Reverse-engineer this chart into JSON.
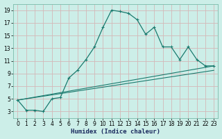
{
  "xlabel": "Humidex (Indice chaleur)",
  "background_color": "#cceee8",
  "grid_color": "#aad4ce",
  "line_color": "#1a7a6e",
  "xlim": [
    -0.5,
    23.5
  ],
  "ylim": [
    2,
    20
  ],
  "xticks": [
    0,
    1,
    2,
    3,
    4,
    5,
    6,
    7,
    8,
    9,
    10,
    11,
    12,
    13,
    14,
    15,
    16,
    17,
    18,
    19,
    20,
    21,
    22,
    23
  ],
  "yticks": [
    3,
    5,
    7,
    9,
    11,
    13,
    15,
    17,
    19
  ],
  "curve1_x": [
    0,
    1,
    2,
    3,
    4,
    5,
    6,
    7,
    8,
    9,
    10,
    11,
    12,
    13,
    14,
    15,
    16,
    17,
    18,
    19,
    20,
    21,
    22,
    23
  ],
  "curve1_y": [
    4.8,
    3.2,
    3.2,
    3.0,
    5.0,
    5.2,
    8.3,
    9.5,
    11.2,
    13.2,
    16.3,
    19.0,
    18.8,
    18.5,
    17.5,
    15.2,
    16.3,
    13.2,
    13.2,
    11.2,
    13.2,
    11.2,
    10.2,
    10.2
  ],
  "curve2_x": [
    0,
    23
  ],
  "curve2_y": [
    4.8,
    10.2
  ],
  "curve3_x": [
    0,
    23
  ],
  "curve3_y": [
    4.8,
    9.5
  ]
}
